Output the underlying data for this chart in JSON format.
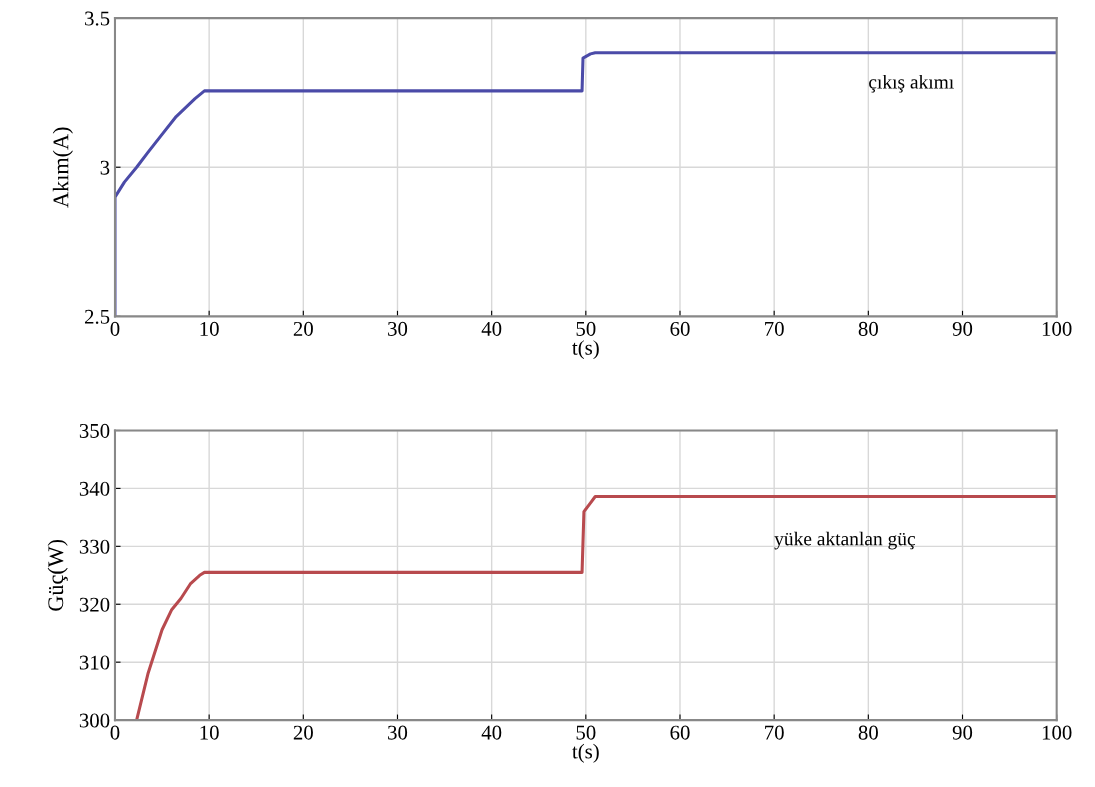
{
  "chart_data": [
    {
      "type": "line",
      "xlabel": "t(s)",
      "ylabel": "Akım(A)",
      "xlim": [
        0,
        100
      ],
      "ylim": [
        2.5,
        3.5
      ],
      "xticks": [
        0,
        10,
        20,
        30,
        40,
        50,
        60,
        70,
        80,
        90,
        100
      ],
      "yticks": [
        2.5,
        3,
        3.5
      ],
      "grid": true,
      "legend": false,
      "series": [
        {
          "name": "çıkış akımı",
          "color": "#4b4ba8",
          "x": [
            0,
            0,
            1,
            2.3,
            3.5,
            5,
            6.5,
            7.5,
            8.5,
            9.5,
            49.6,
            49.7,
            50.5,
            51,
            100
          ],
          "values": [
            2.5,
            2.9,
            2.95,
            3.0,
            3.05,
            3.11,
            3.17,
            3.2,
            3.23,
            3.256,
            3.256,
            3.366,
            3.38,
            3.384,
            3.384
          ]
        }
      ]
    },
    {
      "type": "line",
      "xlabel": "t(s)",
      "ylabel": "Güç(W)",
      "xlim": [
        0,
        100
      ],
      "ylim": [
        300,
        350
      ],
      "xticks": [
        0,
        10,
        20,
        30,
        40,
        50,
        60,
        70,
        80,
        90,
        100
      ],
      "yticks": [
        300,
        310,
        320,
        330,
        340,
        350
      ],
      "grid": true,
      "legend": false,
      "series": [
        {
          "name": "yüke aktanlan güç",
          "color": "#b84a4e",
          "x": [
            2.3,
            3.5,
            5,
            6,
            7,
            8,
            9,
            9.5,
            49.6,
            49.8,
            50.5,
            51,
            100
          ],
          "values": [
            300,
            308,
            315.6,
            319,
            321,
            323.5,
            325,
            325.5,
            325.5,
            336,
            337.5,
            338.6,
            338.6
          ]
        }
      ]
    }
  ]
}
